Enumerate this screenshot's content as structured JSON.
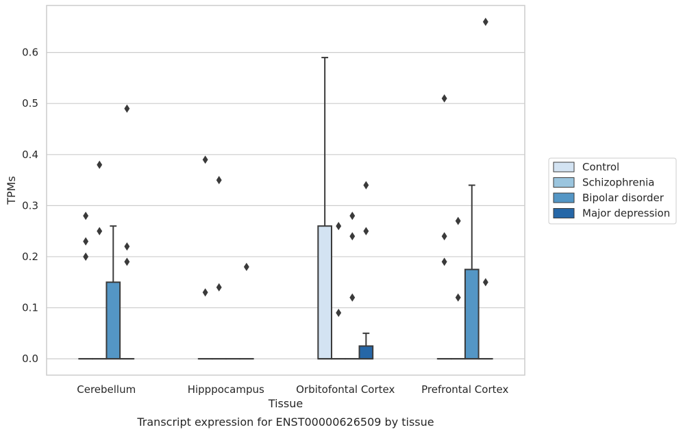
{
  "chart_data": {
    "type": "box",
    "title": "Transcript expression for ENST00000626509 by tissue",
    "xlabel": "Tissue",
    "ylabel": "TPMs",
    "ylim": [
      -0.032,
      0.692
    ],
    "yticks": [
      0.0,
      0.1,
      0.2,
      0.3,
      0.4,
      0.5,
      0.6
    ],
    "ytick_labels": [
      "0.0",
      "0.1",
      "0.2",
      "0.3",
      "0.4",
      "0.5",
      "0.6"
    ],
    "grid": "horizontal",
    "legend_position": "right",
    "categories": [
      "Cerebellum",
      "Hipppocampus",
      "Orbitofontal Cortex",
      "Prefrontal Cortex"
    ],
    "series": [
      {
        "name": "Control",
        "color": "#d3e3f2",
        "boxes": [
          {
            "q1": 0,
            "median": 0,
            "q3": 0,
            "whisker_low": 0,
            "whisker_high": 0,
            "outliers": [
              0.2,
              0.23,
              0.28
            ]
          },
          {
            "q1": 0,
            "median": 0,
            "q3": 0,
            "whisker_low": 0,
            "whisker_high": 0,
            "outliers": [
              0.13,
              0.39
            ]
          },
          {
            "q1": 0,
            "median": 0,
            "q3": 0.26,
            "whisker_low": 0,
            "whisker_high": 0.59,
            "outliers": []
          },
          {
            "q1": 0,
            "median": 0,
            "q3": 0,
            "whisker_low": 0,
            "whisker_high": 0,
            "outliers": [
              0.19,
              0.24,
              0.51
            ]
          }
        ]
      },
      {
        "name": "Schizophrenia",
        "color": "#9bc5de",
        "boxes": [
          {
            "q1": 0,
            "median": 0,
            "q3": 0,
            "whisker_low": 0,
            "whisker_high": 0,
            "outliers": [
              0.25,
              0.38
            ]
          },
          {
            "q1": 0,
            "median": 0,
            "q3": 0,
            "whisker_low": 0,
            "whisker_high": 0,
            "outliers": [
              0.14,
              0.35
            ]
          },
          {
            "q1": 0,
            "median": 0,
            "q3": 0,
            "whisker_low": 0,
            "whisker_high": 0,
            "outliers": [
              0.09,
              0.26
            ]
          },
          {
            "q1": 0,
            "median": 0,
            "q3": 0,
            "whisker_low": 0,
            "whisker_high": 0,
            "outliers": [
              0.12,
              0.27
            ]
          }
        ]
      },
      {
        "name": "Bipolar disorder",
        "color": "#5496c5",
        "boxes": [
          {
            "q1": 0,
            "median": 0,
            "q3": 0.15,
            "whisker_low": 0,
            "whisker_high": 0.26,
            "outliers": []
          },
          {
            "q1": 0,
            "median": 0,
            "q3": 0,
            "whisker_low": 0,
            "whisker_high": 0,
            "outliers": []
          },
          {
            "q1": 0,
            "median": 0,
            "q3": 0,
            "whisker_low": 0,
            "whisker_high": 0,
            "outliers": [
              0.12,
              0.24,
              0.28
            ]
          },
          {
            "q1": 0,
            "median": 0,
            "q3": 0.175,
            "whisker_low": 0,
            "whisker_high": 0.34,
            "outliers": []
          }
        ]
      },
      {
        "name": "Major depression",
        "color": "#2667a7",
        "boxes": [
          {
            "q1": 0,
            "median": 0,
            "q3": 0,
            "whisker_low": 0,
            "whisker_high": 0,
            "outliers": [
              0.19,
              0.22,
              0.49
            ]
          },
          {
            "q1": 0,
            "median": 0,
            "q3": 0,
            "whisker_low": 0,
            "whisker_high": 0,
            "outliers": [
              0.18
            ]
          },
          {
            "q1": 0,
            "median": 0,
            "q3": 0.025,
            "whisker_low": 0,
            "whisker_high": 0.05,
            "outliers": [
              0.25,
              0.34
            ]
          },
          {
            "q1": 0,
            "median": 0,
            "q3": 0,
            "whisker_low": 0,
            "whisker_high": 0,
            "outliers": [
              0.15,
              0.66
            ]
          }
        ]
      }
    ]
  }
}
